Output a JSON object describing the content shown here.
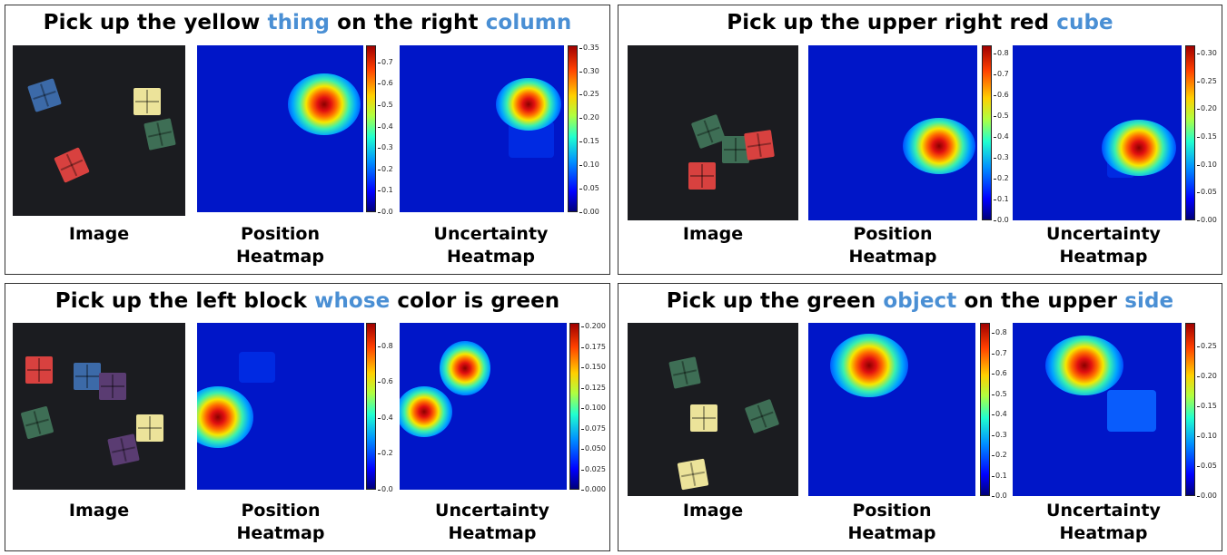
{
  "panels": [
    {
      "title": {
        "pre": "Pick up the yellow ",
        "w1": "thing",
        "mid": " on the right ",
        "w2": "column",
        "post": ""
      },
      "captions": {
        "image": "Image",
        "position": "Position\nHeatmap",
        "uncertainty": "Uncertainty\nHeatmap"
      },
      "position_colorbar": [
        "0.7",
        "0.6",
        "0.5",
        "0.4",
        "0.3",
        "0.2",
        "0.1",
        "0.0"
      ],
      "uncertainty_colorbar": [
        "0.35",
        "0.30",
        "0.25",
        "0.20",
        "0.15",
        "0.10",
        "0.05",
        "0.00"
      ]
    },
    {
      "title": {
        "pre": "Pick up the upper right red ",
        "w1": "cube",
        "mid": "",
        "w2": "",
        "post": ""
      },
      "captions": {
        "image": "Image",
        "position": "Position\nHeatmap",
        "uncertainty": "Uncertainty\nHeatmap"
      },
      "position_colorbar": [
        "0.8",
        "0.7",
        "0.6",
        "0.5",
        "0.4",
        "0.3",
        "0.2",
        "0.1",
        "0.0"
      ],
      "uncertainty_colorbar": [
        "0.30",
        "0.25",
        "0.20",
        "0.15",
        "0.10",
        "0.05",
        "0.00"
      ]
    },
    {
      "title": {
        "pre": "Pick up the left block ",
        "w1": "whose",
        "mid": " color is green",
        "w2": "",
        "post": ""
      },
      "captions": {
        "image": "Image",
        "position": "Position\nHeatmap",
        "uncertainty": "Uncertainty\nHeatmap"
      },
      "position_colorbar": [
        "0.8",
        "0.6",
        "0.4",
        "0.2",
        "0.0"
      ],
      "uncertainty_colorbar": [
        "0.200",
        "0.175",
        "0.150",
        "0.125",
        "0.100",
        "0.075",
        "0.050",
        "0.025",
        "0.000"
      ]
    },
    {
      "title": {
        "pre": "Pick up the green ",
        "w1": "object",
        "mid": " on the upper ",
        "w2": "side",
        "post": ""
      },
      "captions": {
        "image": "Image",
        "position": "Position\nHeatmap",
        "uncertainty": "Uncertainty\nHeatmap"
      },
      "position_colorbar": [
        "0.8",
        "0.7",
        "0.6",
        "0.5",
        "0.4",
        "0.3",
        "0.2",
        "0.1",
        "0.0"
      ],
      "uncertainty_colorbar": [
        "0.25",
        "0.20",
        "0.15",
        "0.10",
        "0.05",
        "0.00"
      ]
    }
  ]
}
